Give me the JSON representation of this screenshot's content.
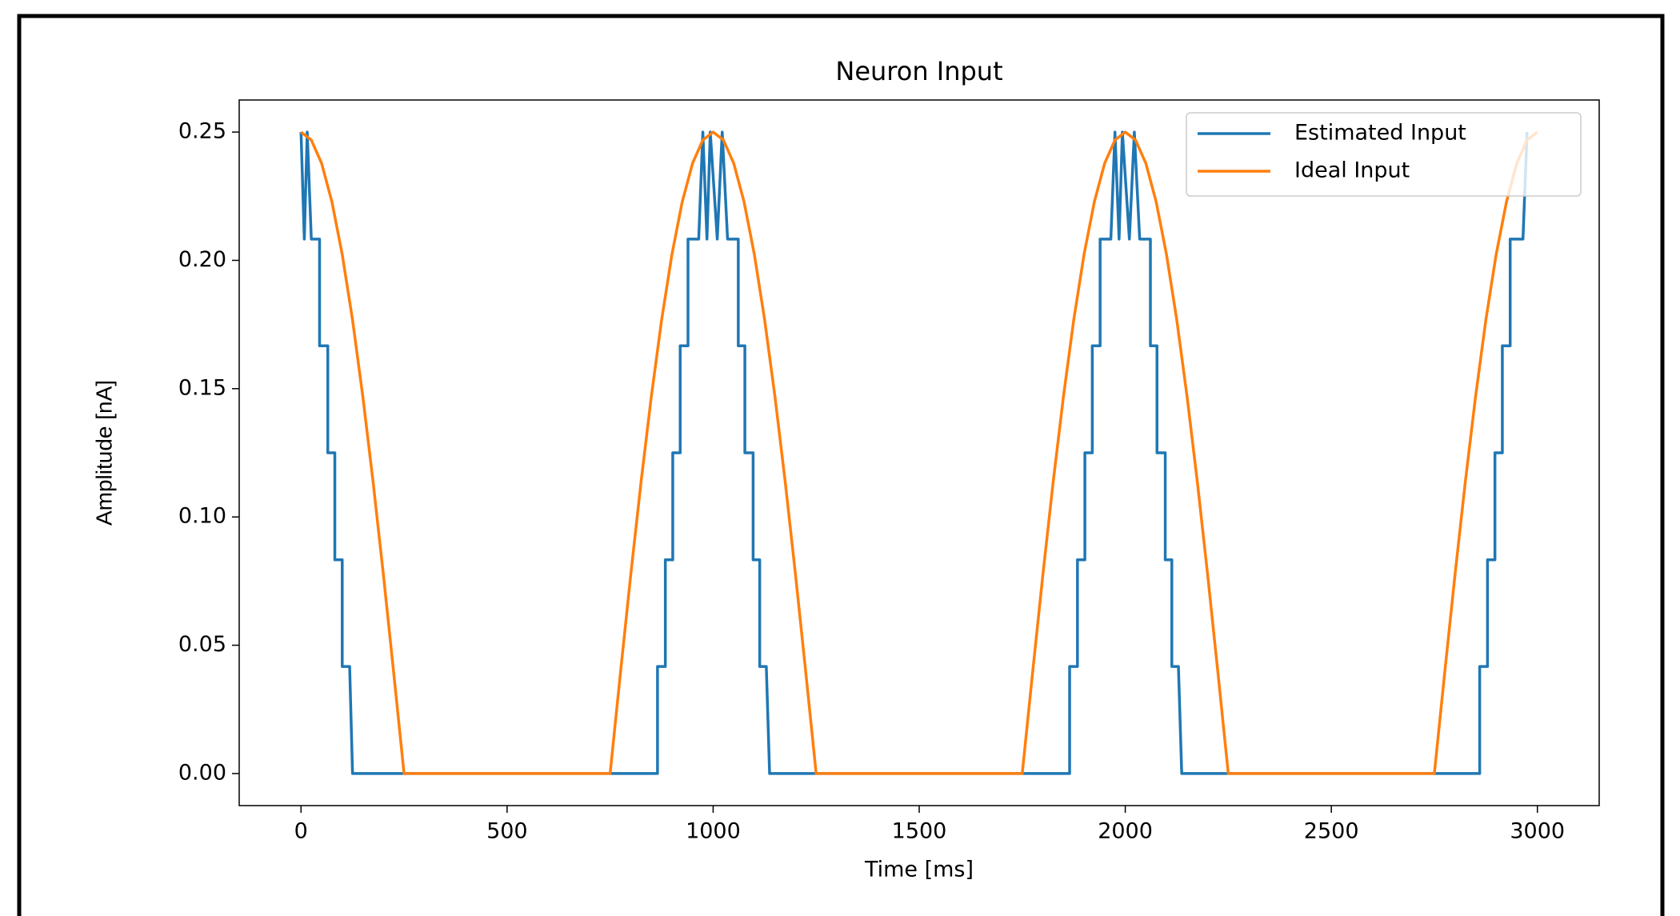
{
  "chart_data": {
    "type": "line",
    "title": "Neuron Input",
    "x_label": "Time [ms]",
    "y_label": "Amplitude [nA]",
    "xlim": [
      -150,
      3150
    ],
    "ylim": [
      -0.0125,
      0.2625
    ],
    "xticks": [
      0,
      500,
      1000,
      1500,
      2000,
      2500,
      3000
    ],
    "yticks": [
      {
        "value": 0,
        "label": "0.00"
      },
      {
        "value": 0.05,
        "label": "0.05"
      },
      {
        "value": 0.1,
        "label": "0.10"
      },
      {
        "value": 0.15,
        "label": "0.15"
      },
      {
        "value": 0.2,
        "label": "0.20"
      },
      {
        "value": 0.25,
        "label": "0.25"
      }
    ],
    "legend": "upper right",
    "grid": false,
    "series": [
      {
        "name": "Estimated Input",
        "color": "#1f77b4",
        "x": [
          0,
          8,
          15,
          25,
          45,
          45,
          65,
          65,
          82,
          82,
          100,
          100,
          118,
          125,
          865,
          865,
          884,
          884,
          902,
          902,
          920,
          920,
          939,
          939,
          965,
          975,
          985,
          993,
          1010,
          1022,
          1035,
          1061,
          1061,
          1077,
          1077,
          1097,
          1097,
          1113,
          1113,
          1129,
          1137,
          1865,
          1865,
          1884,
          1884,
          1902,
          1902,
          1920,
          1920,
          1939,
          1939,
          1965,
          1975,
          1985,
          1993,
          2010,
          2022,
          2035,
          2061,
          2061,
          2077,
          2077,
          2097,
          2097,
          2113,
          2113,
          2129,
          2137,
          2860,
          2860,
          2879,
          2879,
          2897,
          2897,
          2915,
          2915,
          2934,
          2934,
          2965,
          2975
        ],
        "values": [
          0.25,
          0.2083,
          0.25,
          0.2083,
          0.2083,
          0.1667,
          0.1667,
          0.125,
          0.125,
          0.0833,
          0.0833,
          0.0417,
          0.0417,
          0,
          0,
          0.0417,
          0.0417,
          0.0833,
          0.0833,
          0.125,
          0.125,
          0.1667,
          0.1667,
          0.2083,
          0.2083,
          0.25,
          0.2083,
          0.25,
          0.2083,
          0.25,
          0.2083,
          0.2083,
          0.1667,
          0.1667,
          0.125,
          0.125,
          0.0833,
          0.0833,
          0.0417,
          0.0417,
          0,
          0,
          0.0417,
          0.0417,
          0.0833,
          0.0833,
          0.125,
          0.125,
          0.1667,
          0.1667,
          0.2083,
          0.2083,
          0.25,
          0.2083,
          0.25,
          0.2083,
          0.25,
          0.2083,
          0.2083,
          0.1667,
          0.1667,
          0.125,
          0.125,
          0.0833,
          0.0833,
          0.0417,
          0.0417,
          0,
          0,
          0.0417,
          0.0417,
          0.0833,
          0.0833,
          0.125,
          0.125,
          0.1667,
          0.1667,
          0.2083,
          0.2083,
          0.25
        ]
      },
      {
        "name": "Ideal Input",
        "color": "#ff7f0e",
        "x": [
          0,
          25,
          50,
          75,
          100,
          125,
          150,
          175,
          200,
          225,
          250,
          750,
          775,
          800,
          825,
          850,
          875,
          900,
          925,
          950,
          975,
          1000,
          1025,
          1050,
          1075,
          1100,
          1125,
          1150,
          1175,
          1200,
          1225,
          1250,
          1750,
          1775,
          1800,
          1825,
          1850,
          1875,
          1900,
          1925,
          1950,
          1975,
          2000,
          2025,
          2050,
          2075,
          2100,
          2125,
          2150,
          2175,
          2200,
          2225,
          2250,
          2750,
          2775,
          2800,
          2825,
          2850,
          2875,
          2900,
          2925,
          2950,
          2975,
          3000
        ],
        "values": [
          0.25,
          0.2469,
          0.2378,
          0.2228,
          0.2023,
          0.1768,
          0.1469,
          0.1135,
          0.0773,
          0.0391,
          0,
          0,
          0.0391,
          0.0773,
          0.1135,
          0.1469,
          0.1768,
          0.2023,
          0.2228,
          0.2378,
          0.2469,
          0.25,
          0.2469,
          0.2378,
          0.2228,
          0.2023,
          0.1768,
          0.1469,
          0.1135,
          0.0773,
          0.0391,
          0,
          0,
          0.0391,
          0.0773,
          0.1135,
          0.1469,
          0.1768,
          0.2023,
          0.2228,
          0.2378,
          0.2469,
          0.25,
          0.2469,
          0.2378,
          0.2228,
          0.2023,
          0.1768,
          0.1469,
          0.1135,
          0.0773,
          0.0391,
          0,
          0,
          0.0391,
          0.0773,
          0.1135,
          0.1469,
          0.1768,
          0.2023,
          0.2228,
          0.2378,
          0.2469,
          0.25
        ]
      }
    ]
  }
}
